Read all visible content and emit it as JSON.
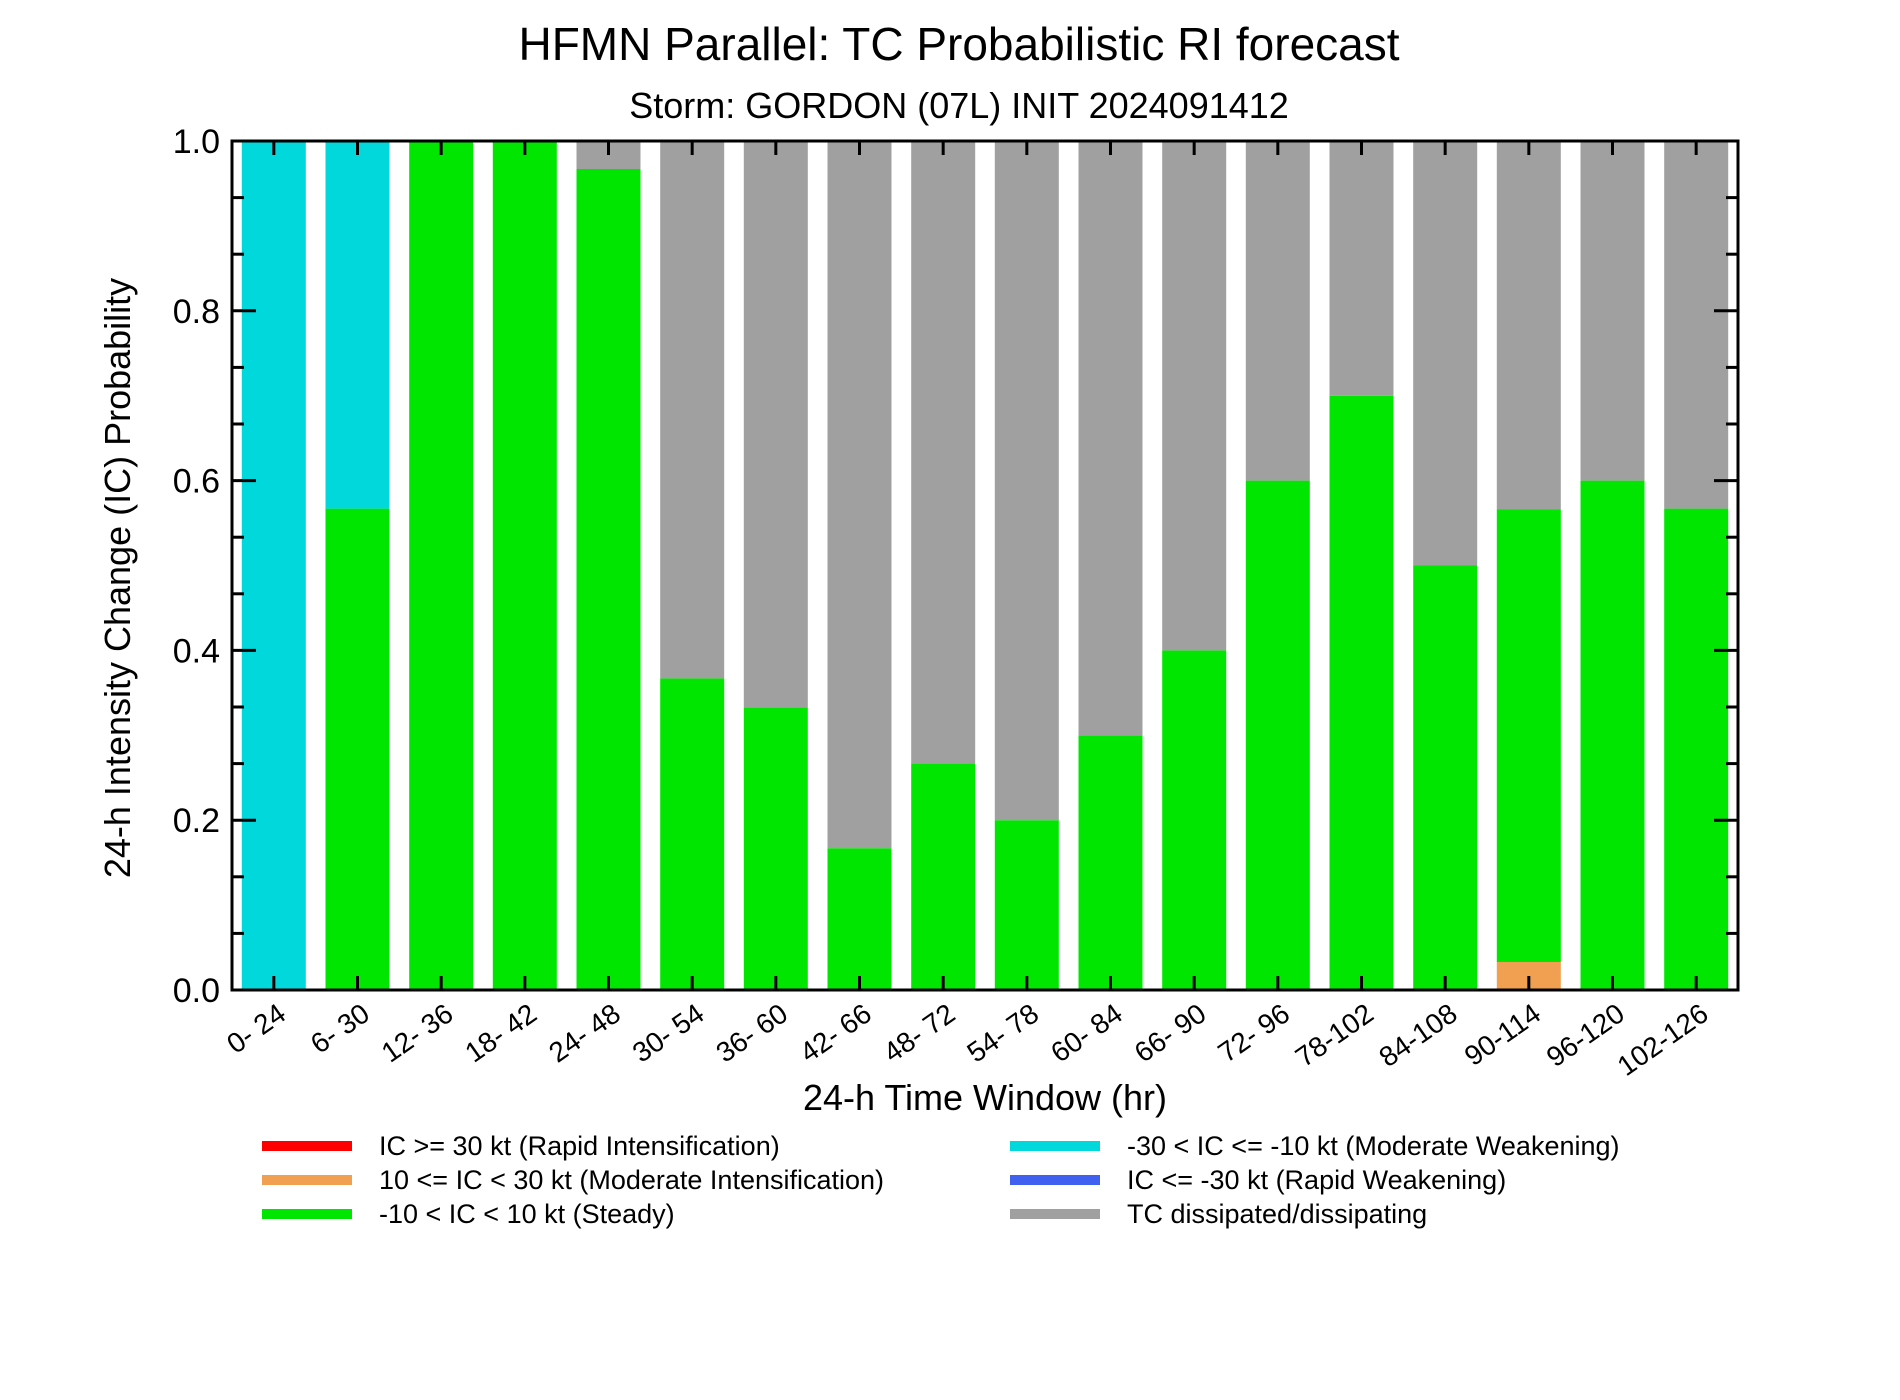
{
  "chart_data": {
    "type": "bar",
    "stacked": true,
    "title": "HFMN Parallel: TC Probabilistic RI forecast",
    "subtitle": "Storm: GORDON (07L) INIT 2024091412",
    "xlabel": "24-h Time Window (hr)",
    "ylabel": "24-h Intensity Change (IC) Probability",
    "ylim": [
      0,
      1
    ],
    "yticks": [
      "0.0",
      "0.2",
      "0.4",
      "0.6",
      "0.8",
      "1.0"
    ],
    "grid": false,
    "categories": [
      "0- 24",
      "6- 30",
      "12- 36",
      "18- 42",
      "24- 48",
      "30- 54",
      "36- 60",
      "42- 66",
      "48- 72",
      "54- 78",
      "60- 84",
      "66- 90",
      "72- 96",
      "78-102",
      "84-108",
      "90-114",
      "96-120",
      "102-126"
    ],
    "series": [
      {
        "name": "IC >= 30 kt (Rapid Intensification)",
        "color": "#ff0000",
        "values": [
          0,
          0,
          0,
          0,
          0,
          0,
          0,
          0,
          0,
          0,
          0,
          0,
          0,
          0,
          0,
          0,
          0,
          0
        ]
      },
      {
        "name": "10 <= IC < 30 kt (Moderate Intensification)",
        "color": "#f0a050",
        "values": [
          0,
          0,
          0,
          0,
          0,
          0,
          0,
          0,
          0,
          0,
          0,
          0,
          0,
          0,
          0,
          0.033,
          0,
          0
        ]
      },
      {
        "name": "-10 < IC < 10 kt (Steady)",
        "color": "#00e600",
        "values": [
          0,
          0.567,
          1.0,
          1.0,
          0.967,
          0.367,
          0.333,
          0.167,
          0.267,
          0.2,
          0.3,
          0.4,
          0.6,
          0.7,
          0.5,
          0.533,
          0.6,
          0.567
        ]
      },
      {
        "name": "-30 < IC <= -10 kt (Moderate Weakening)",
        "color": "#00d8dc",
        "values": [
          1.0,
          0.433,
          0,
          0,
          0,
          0,
          0,
          0,
          0,
          0,
          0,
          0,
          0,
          0,
          0,
          0,
          0,
          0
        ]
      },
      {
        "name": "IC <= -30 kt (Rapid Weakening)",
        "color": "#4060f0",
        "values": [
          0,
          0,
          0,
          0,
          0,
          0,
          0,
          0,
          0,
          0,
          0,
          0,
          0,
          0,
          0,
          0,
          0,
          0
        ]
      },
      {
        "name": "TC dissipated/dissipating",
        "color": "#a0a0a0",
        "values": [
          0,
          0,
          0,
          0,
          0.033,
          0.633,
          0.667,
          0.833,
          0.733,
          0.8,
          0.7,
          0.6,
          0.4,
          0.3,
          0.5,
          0.434,
          0.4,
          0.433
        ]
      }
    ],
    "stack_order": [
      1,
      2,
      3,
      0,
      4,
      5
    ],
    "legend_columns": [
      [
        0,
        1,
        2
      ],
      [
        3,
        4,
        5
      ]
    ],
    "legend_placement": "bottom"
  }
}
